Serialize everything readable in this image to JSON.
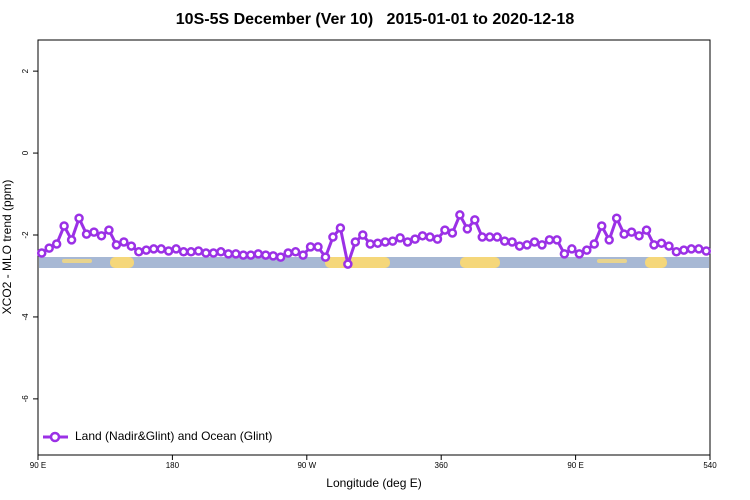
{
  "chart_data": {
    "type": "line",
    "title": "10S-5S December (Ver 10)   2015-01-01 to 2020-12-18",
    "xlabel": "Longitude (deg E)",
    "ylabel": "XCO2 - MLO trend (ppm)",
    "xlim": [
      90,
      540
    ],
    "ylim": [
      -7.37,
      2.76
    ],
    "xticks": [
      {
        "value": 90,
        "label": "90 E"
      },
      180,
      {
        "value": 270,
        "label": "90 W"
      },
      360,
      {
        "value": 450,
        "label": "90 E"
      },
      540
    ],
    "yticks": [
      2,
      0,
      -2,
      -4,
      -6
    ],
    "legend_position": "bottom-left",
    "x": [
      92.5,
      97.5,
      102.5,
      107.5,
      112.5,
      117.5,
      122.5,
      127.5,
      132.5,
      137.5,
      142.5,
      147.5,
      152.5,
      157.5,
      162.5,
      167.5,
      172.5,
      177.5,
      182.5,
      187.5,
      192.5,
      197.5,
      202.5,
      207.5,
      212.5,
      217.5,
      222.5,
      227.5,
      232.5,
      237.5,
      242.5,
      247.5,
      252.5,
      257.5,
      262.5,
      267.5,
      272.5,
      277.5,
      282.5,
      287.5,
      292.5,
      297.5,
      302.5,
      307.5,
      312.5,
      317.5,
      322.5,
      327.5,
      332.5,
      337.5,
      342.5,
      347.5,
      352.5,
      357.5,
      362.5,
      367.5,
      372.5,
      377.5,
      382.5,
      387.5,
      392.5,
      397.5,
      402.5,
      407.5,
      412.5,
      417.5,
      422.5,
      427.5,
      432.5,
      437.5,
      442.5,
      447.5,
      452.5,
      457.5,
      462.5,
      467.5,
      472.5,
      477.5,
      482.5,
      487.5,
      492.5,
      497.5,
      502.5,
      507.5,
      512.5,
      517.5,
      522.5,
      527.5,
      532.5,
      537.5
    ],
    "series": [
      {
        "name": "Land (Nadir&Glint) and Ocean (Glint)",
        "color": "#9b30e6",
        "values": [
          -2.44,
          -2.32,
          -2.22,
          -1.78,
          -2.12,
          -1.59,
          -1.98,
          -1.93,
          -2.02,
          -1.88,
          -2.24,
          -2.17,
          -2.27,
          -2.41,
          -2.37,
          -2.34,
          -2.34,
          -2.39,
          -2.34,
          -2.41,
          -2.41,
          -2.39,
          -2.44,
          -2.44,
          -2.41,
          -2.46,
          -2.46,
          -2.49,
          -2.49,
          -2.46,
          -2.49,
          -2.51,
          -2.54,
          -2.44,
          -2.41,
          -2.49,
          -2.29,
          -2.29,
          -2.54,
          -2.05,
          -1.83,
          -2.71,
          -2.17,
          -2.0,
          -2.22,
          -2.2,
          -2.17,
          -2.15,
          -2.07,
          -2.17,
          -2.1,
          -2.02,
          -2.05,
          -2.1,
          -1.88,
          -1.95,
          -1.51,
          -1.85,
          -1.63,
          -2.05,
          -2.05,
          -2.05,
          -2.15,
          -2.17,
          -2.27,
          -2.24,
          -2.17,
          -2.24,
          -2.12,
          -2.12,
          -2.46,
          -2.34,
          -2.46,
          -2.37,
          -2.22,
          -1.78,
          -2.12,
          -1.59,
          -1.98,
          -1.93,
          -2.02,
          -1.88,
          -2.24,
          -2.2,
          -2.27,
          -2.41,
          -2.37,
          -2.34,
          -2.34,
          -2.39
        ]
      }
    ]
  }
}
